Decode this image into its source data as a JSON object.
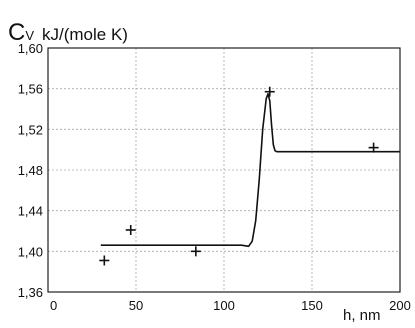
{
  "chart_data": {
    "type": "line",
    "ylabel": {
      "symbol": "C",
      "subscript": "V",
      "units": "kJ/(mole K)"
    },
    "xlabel": "h, nm",
    "xlim": [
      0,
      200
    ],
    "ylim": [
      1.36,
      1.6
    ],
    "x_ticks": [
      0,
      50,
      100,
      150,
      200
    ],
    "x_tick_labels": [
      "0",
      "50",
      "100",
      "150",
      "200"
    ],
    "y_ticks": [
      1.36,
      1.4,
      1.44,
      1.48,
      1.52,
      1.56,
      1.6
    ],
    "y_tick_labels": [
      "1,36",
      "1,40",
      "1,44",
      "1,48",
      "1,52",
      "1,56",
      "1,60"
    ],
    "grid": true,
    "series": [
      {
        "kind": "line",
        "x": [
          30,
          60,
          90,
          110,
          114,
          116,
          118,
          120,
          122,
          124,
          125,
          126,
          127,
          128,
          129,
          130,
          135,
          150,
          200
        ],
        "y": [
          1.406,
          1.406,
          1.406,
          1.406,
          1.405,
          1.41,
          1.43,
          1.47,
          1.52,
          1.55,
          1.555,
          1.548,
          1.525,
          1.505,
          1.499,
          1.498,
          1.498,
          1.498,
          1.498
        ]
      },
      {
        "kind": "scatter",
        "marker": "+",
        "x": [
          32,
          47,
          84,
          126,
          185
        ],
        "y": [
          1.391,
          1.421,
          1.4,
          1.557,
          1.502
        ]
      }
    ]
  }
}
